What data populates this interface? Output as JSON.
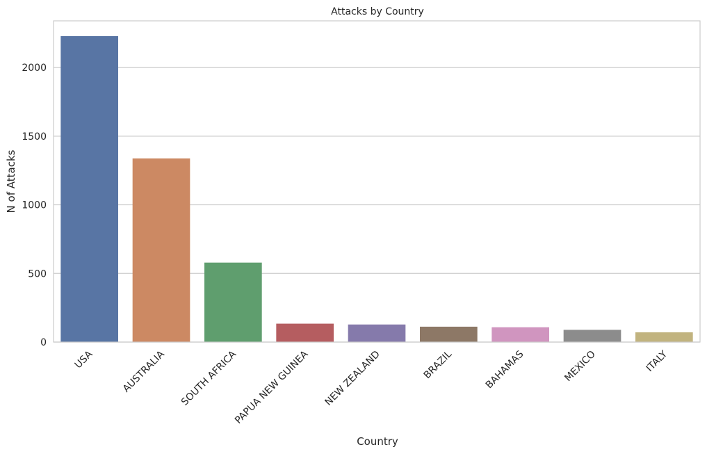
{
  "chart_data": {
    "type": "bar",
    "title": "Attacks by Country",
    "xlabel": "Country",
    "ylabel": "N of Attacks",
    "categories": [
      "USA",
      "AUSTRALIA",
      "SOUTH AFRICA",
      "PAPUA NEW GUINEA",
      "NEW ZEALAND",
      "BRAZIL",
      "BAHAMAS",
      "MEXICO",
      "ITALY"
    ],
    "values": [
      2229,
      1338,
      579,
      134,
      128,
      112,
      108,
      89,
      71
    ],
    "colors": [
      "#5875a4",
      "#cc8963",
      "#5f9e6e",
      "#b55d60",
      "#857aab",
      "#8d7866",
      "#d095bf",
      "#8c8c8c",
      "#c1b37f"
    ],
    "ylim": [
      0,
      2340
    ],
    "yticks": [
      0,
      500,
      1000,
      1500,
      2000
    ],
    "grid": true,
    "legend": "none"
  }
}
